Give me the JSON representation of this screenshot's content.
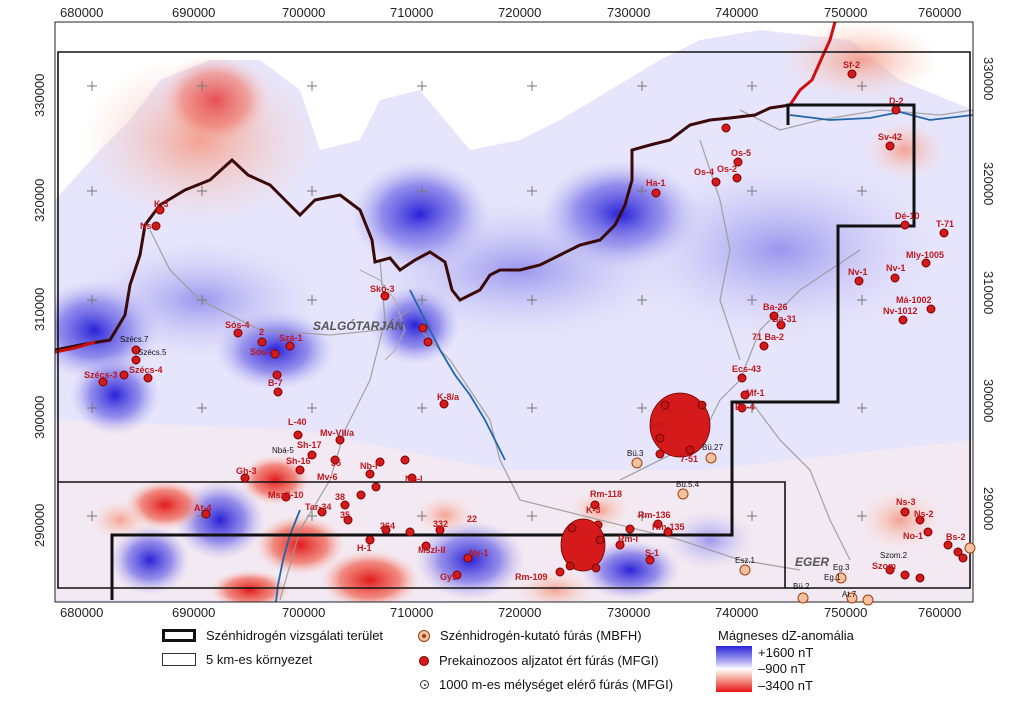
{
  "map": {
    "x_ticks": [
      "680000",
      "690000",
      "700000",
      "710000",
      "720000",
      "730000",
      "740000",
      "750000",
      "760000"
    ],
    "y_ticks": [
      "330000",
      "320000",
      "310000",
      "300000",
      "290000"
    ],
    "cities": [
      {
        "name": "SALGÓTARJÁN"
      },
      {
        "name": "EGER"
      }
    ],
    "well_labels": [
      "K-3",
      "Ns-1",
      "Skó-3",
      "Sós-4",
      "2",
      "Szá-1",
      "Sós-1",
      "B-7",
      "Szécs.7",
      "Szécs.5",
      "Szécs-3",
      "Szécs-4",
      "K-8/a",
      "L-40",
      "Mv-VII/a",
      "Sh-17",
      "Sh-16",
      "55",
      "Nbá-5",
      "Nb-I",
      "Mv-6",
      "Nb-I",
      "Ha-1",
      "Os-5",
      "Os-4",
      "Os-2",
      "Sf-2",
      "D-2",
      "Sv-42",
      "Dé-10",
      "T-71",
      "Mly-1005",
      "Nv-1",
      "Nv-1",
      "Má-1002",
      "Nv-1012",
      "Ba-26",
      "Ba-31",
      "71 Ba-2",
      "Ecs-43",
      "Mf-1",
      "Eb-4",
      "Fs",
      "Bh-",
      "7-51",
      "Bü.3",
      "Bü.27",
      "Bü.5.4",
      "Rm-118",
      "K-3",
      "Rm-136",
      "Rm-135",
      "Rm-I",
      "S-1",
      "Rm-109",
      "Gys",
      "Ny-1",
      "Mszl-II",
      "332",
      "264",
      "22",
      "H-1",
      "At-4",
      "Gh-3",
      "Msző-10",
      "Tar-34",
      "38",
      "35",
      "Ns-3",
      "Ns-2",
      "No-1",
      "Bs-2",
      "Szom.2",
      "Szom",
      "Esz.1",
      "Eg.3",
      "Eg.1",
      "Bü.2",
      "At.7"
    ],
    "colors": {
      "positive": "#2a24d8",
      "negative": "#e51414",
      "boundary": "#3a0a0a",
      "border_red": "#cc1010",
      "river": "#2266aa",
      "well": "#d41a1a"
    }
  },
  "legend": {
    "study_area": "Szénhidrogén vizsgálati terület",
    "buffer_5km": "5 km-es környezet",
    "mbfh_well": "Szénhidrogén-kutató fúrás (MBFH)",
    "mfgi_well": "Prekainozoos aljzatot ért fúrás (MFGI)",
    "deep_well": "1000 m-es mélységet elérő fúrás (MFGI)",
    "ramp_title": "Mágneses dZ-anomália",
    "ramp_max": "+1600 nT",
    "ramp_mid": "–900 nT",
    "ramp_min": "–3400 nT"
  }
}
